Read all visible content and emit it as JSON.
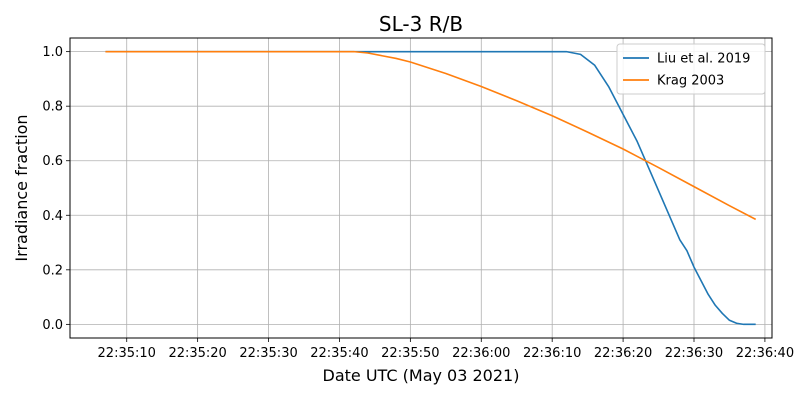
{
  "chart_data": {
    "type": "line",
    "title": "SL-3 R/B",
    "xlabel": "Date UTC (May 03 2021)",
    "ylabel": "Irradiance fraction",
    "x_unit": "time of day UTC (HH:MM:SS)",
    "xlim": [
      "22:35:02",
      "22:36:41"
    ],
    "ylim": [
      -0.05,
      1.05
    ],
    "x_ticks": [
      "22:35:10",
      "22:35:20",
      "22:35:30",
      "22:35:40",
      "22:35:50",
      "22:36:00",
      "22:36:10",
      "22:36:20",
      "22:36:30",
      "22:36:40"
    ],
    "y_ticks": [
      "0.0",
      "0.2",
      "0.4",
      "0.6",
      "0.8",
      "1.0"
    ],
    "grid": true,
    "legend": "top-right",
    "series": [
      {
        "name": "Liu et al. 2019",
        "color": "#1f77b4",
        "points": [
          [
            "22:35:07",
            1.0
          ],
          [
            "22:35:30",
            1.0
          ],
          [
            "22:36:00",
            1.0
          ],
          [
            "22:36:12",
            1.0
          ],
          [
            "22:36:14",
            0.99
          ],
          [
            "22:36:16",
            0.95
          ],
          [
            "22:36:18",
            0.87
          ],
          [
            "22:36:20",
            0.77
          ],
          [
            "22:36:22",
            0.67
          ],
          [
            "22:36:24",
            0.55
          ],
          [
            "22:36:26",
            0.43
          ],
          [
            "22:36:28",
            0.31
          ],
          [
            "22:36:29",
            0.27
          ],
          [
            "22:36:30",
            0.21
          ],
          [
            "22:36:31",
            0.16
          ],
          [
            "22:36:32",
            0.11
          ],
          [
            "22:36:33",
            0.07
          ],
          [
            "22:36:34",
            0.04
          ],
          [
            "22:36:35",
            0.015
          ],
          [
            "22:36:36",
            0.004
          ],
          [
            "22:36:37",
            0.0
          ],
          [
            "22:36:38.7",
            0.0
          ]
        ]
      },
      {
        "name": "Krag 2003",
        "color": "#ff7f0e",
        "points": [
          [
            "22:35:07",
            1.0
          ],
          [
            "22:35:30",
            1.0
          ],
          [
            "22:35:42",
            1.0
          ],
          [
            "22:35:44",
            0.995
          ],
          [
            "22:35:46",
            0.985
          ],
          [
            "22:35:48",
            0.975
          ],
          [
            "22:35:50",
            0.962
          ],
          [
            "22:35:55",
            0.92
          ],
          [
            "22:36:00",
            0.872
          ],
          [
            "22:36:05",
            0.82
          ],
          [
            "22:36:10",
            0.765
          ],
          [
            "22:36:15",
            0.705
          ],
          [
            "22:36:20",
            0.643
          ],
          [
            "22:36:25",
            0.575
          ],
          [
            "22:36:30",
            0.505
          ],
          [
            "22:36:35",
            0.435
          ],
          [
            "22:36:38.7",
            0.385
          ]
        ]
      }
    ]
  }
}
